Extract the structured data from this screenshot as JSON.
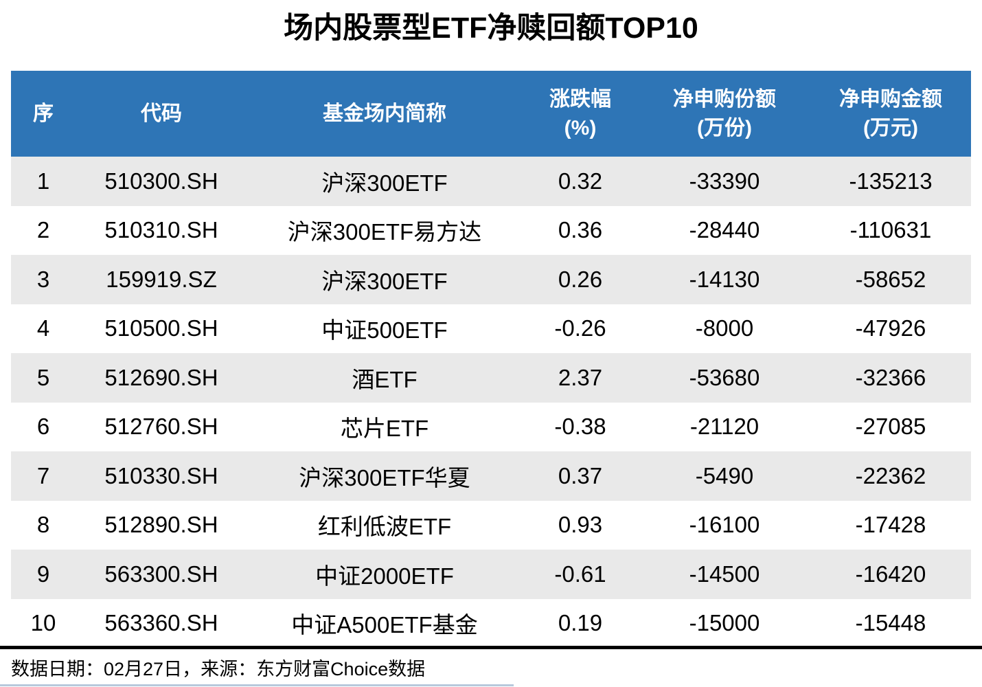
{
  "title": "场内股票型ETF净赎回额TOP10",
  "colors": {
    "header_bg": "#2E75B6",
    "header_text": "#FFFFFF",
    "stripe_row": "#E9E9E9",
    "divider": "#000000",
    "accent_line": "#B7C9DC"
  },
  "table": {
    "headers": [
      {
        "label": "序",
        "unit": ""
      },
      {
        "label": "代码",
        "unit": ""
      },
      {
        "label": "基金场内简称",
        "unit": ""
      },
      {
        "label": "涨跌幅",
        "unit": "(%)"
      },
      {
        "label": "净申购份额",
        "unit": "(万份)"
      },
      {
        "label": "净申购金额",
        "unit": "(万元)"
      }
    ]
  },
  "chart_data": {
    "type": "table",
    "title": "场内股票型ETF净赎回额TOP10",
    "columns": [
      "序",
      "代码",
      "基金场内简称",
      "涨跌幅(%)",
      "净申购份额(万份)",
      "净申购金额(万元)"
    ],
    "rows": [
      [
        "1",
        "510300.SH",
        "沪深300ETF",
        "0.32",
        "-33390",
        "-135213"
      ],
      [
        "2",
        "510310.SH",
        "沪深300ETF易方达",
        "0.36",
        "-28440",
        "-110631"
      ],
      [
        "3",
        "159919.SZ",
        "沪深300ETF",
        "0.26",
        "-14130",
        "-58652"
      ],
      [
        "4",
        "510500.SH",
        "中证500ETF",
        "-0.26",
        "-8000",
        "-47926"
      ],
      [
        "5",
        "512690.SH",
        "酒ETF",
        "2.37",
        "-53680",
        "-32366"
      ],
      [
        "6",
        "512760.SH",
        "芯片ETF",
        "-0.38",
        "-21120",
        "-27085"
      ],
      [
        "7",
        "510330.SH",
        "沪深300ETF华夏",
        "0.37",
        "-5490",
        "-22362"
      ],
      [
        "8",
        "512890.SH",
        "红利低波ETF",
        "0.93",
        "-16100",
        "-17428"
      ],
      [
        "9",
        "563300.SH",
        "中证2000ETF",
        "-0.61",
        "-14500",
        "-16420"
      ],
      [
        "10",
        "563360.SH",
        "中证A500ETF基金",
        "0.19",
        "-15000",
        "-15448"
      ]
    ]
  },
  "footer": {
    "text": "数据日期：02月27日，来源：东方财富Choice数据"
  }
}
